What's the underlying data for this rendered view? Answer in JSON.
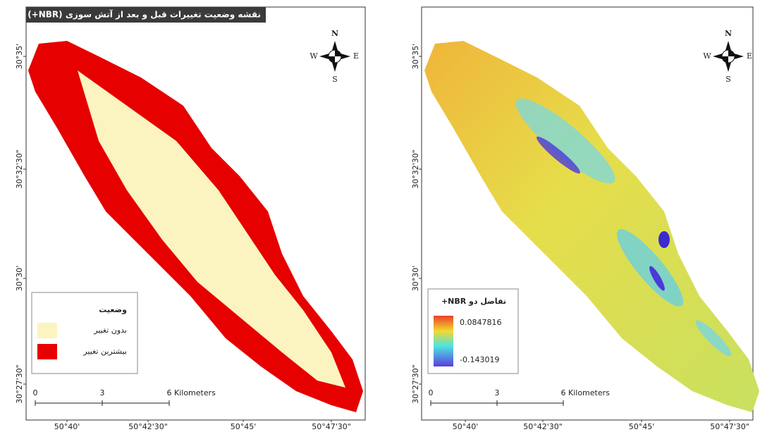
{
  "left_map": {
    "title": "نقشه وضعیت تغییرات قبل و بعد از آتش سوزی (NBR+)",
    "compass": {
      "n": "N",
      "s": "S",
      "e": "E",
      "w": "W"
    },
    "lat_labels": [
      "30°35'",
      "30°32'30\"",
      "30°30'",
      "30°27'30\""
    ],
    "lon_labels": [
      "50°40'",
      "50°42'30\"",
      "50°45'",
      "50°47'30\""
    ],
    "legend": {
      "title": "وضعیت",
      "items": [
        "بدون تغییر",
        "بیشترین تغییر"
      ]
    },
    "scale_bar": {
      "ticks": [
        "0",
        "3",
        "6"
      ],
      "unit": "Kilometers"
    }
  },
  "right_map": {
    "compass": {
      "n": "N",
      "s": "S",
      "e": "E",
      "w": "W"
    },
    "lat_labels": [
      "30°35'",
      "30°32'30\"",
      "30°30'",
      "30°27'30\""
    ],
    "lon_labels": [
      "50°40'",
      "50°42'30\"",
      "50°45'",
      "50°47'30\""
    ],
    "legend": {
      "title": "تفاضل دو NBR+",
      "max": "0.0847816",
      "min": "-0.143019"
    },
    "scale_bar": {
      "ticks": [
        "0",
        "3",
        "6"
      ],
      "unit": "Kilometers"
    }
  }
}
